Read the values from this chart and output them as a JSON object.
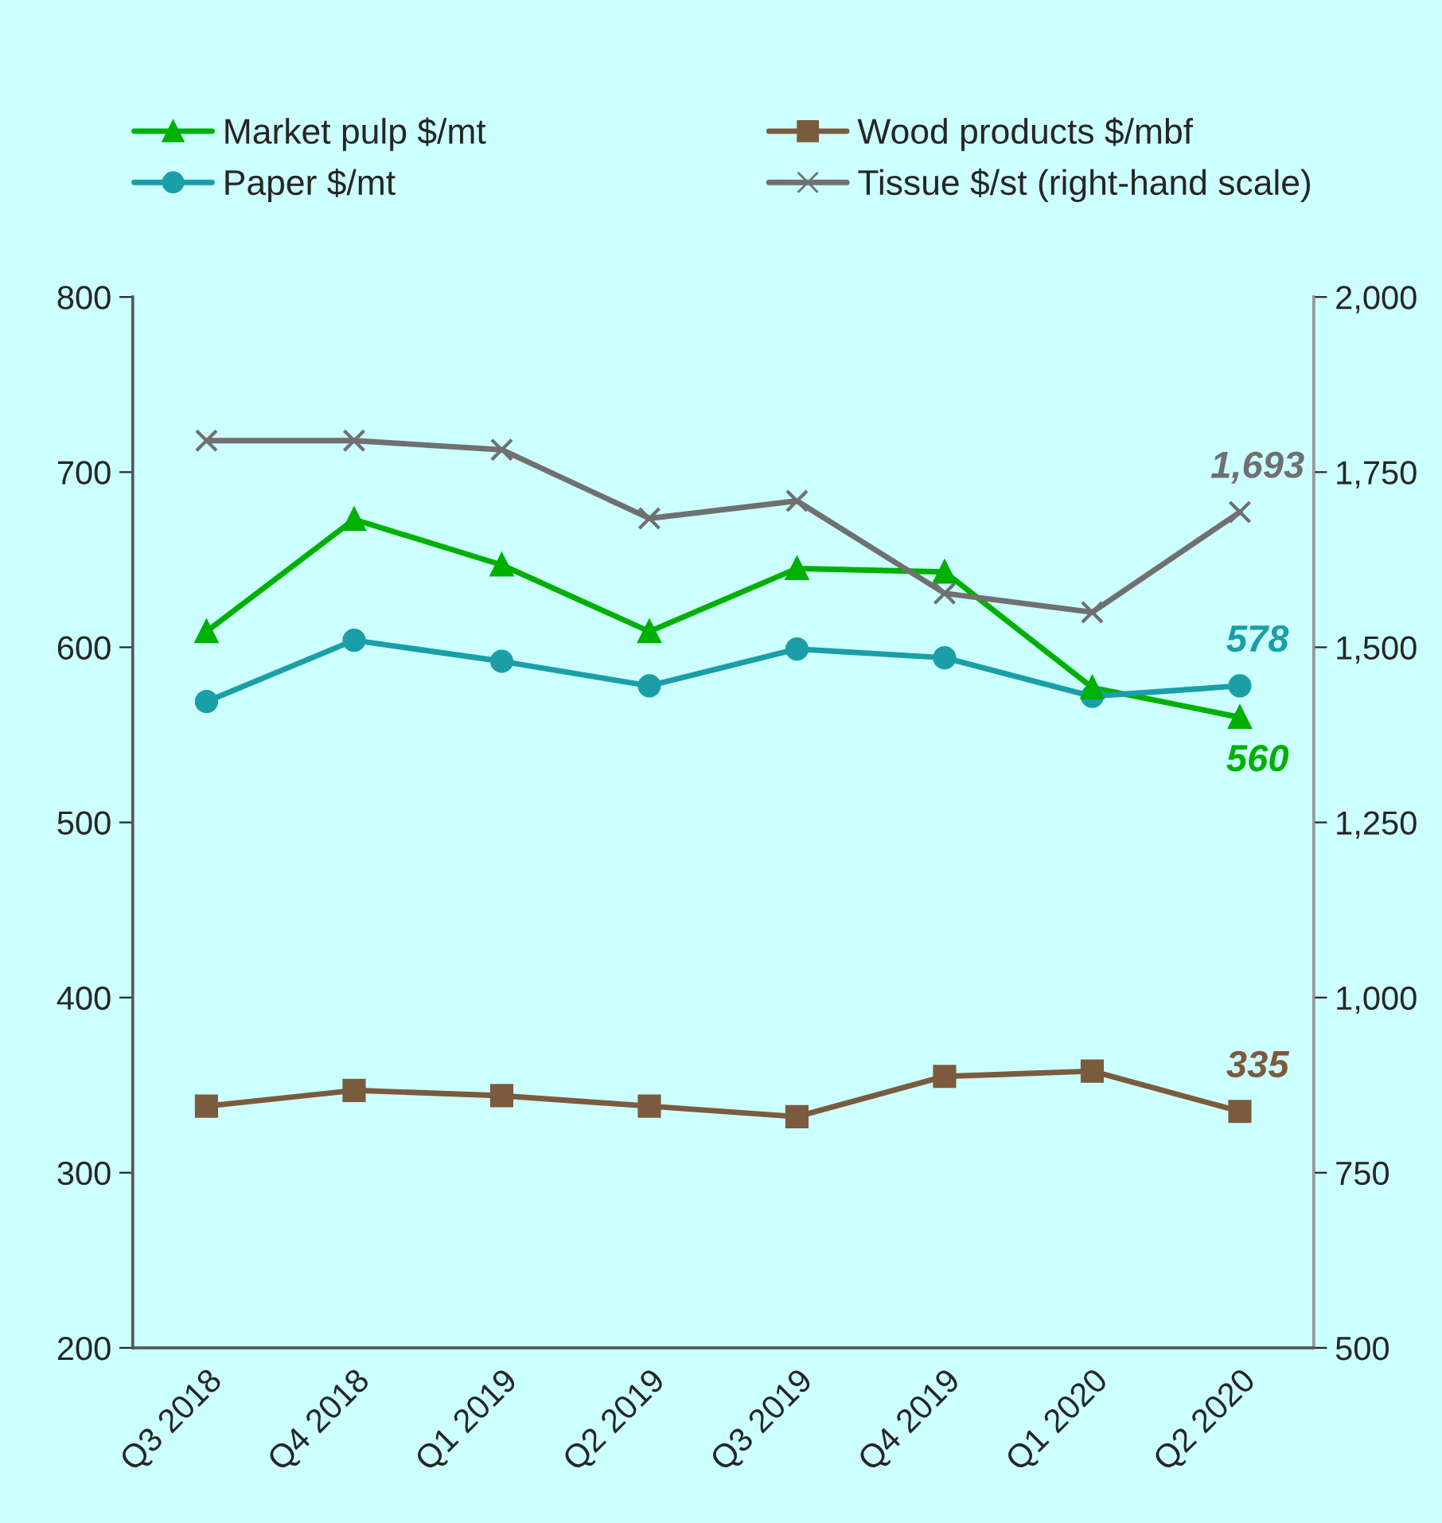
{
  "chart_data": {
    "type": "line",
    "categories": [
      "Q3 2018",
      "Q4 2018",
      "Q1 2019",
      "Q2 2019",
      "Q3 2019",
      "Q4 2019",
      "Q1 2020",
      "Q2 2020"
    ],
    "series": [
      {
        "name": "Market pulp $/mt",
        "color": "#00b000",
        "marker": "triangle",
        "values": [
          609,
          673,
          647,
          609,
          645,
          643,
          577,
          560
        ],
        "value_labels": [
          null,
          null,
          null,
          null,
          null,
          null,
          null,
          "560"
        ]
      },
      {
        "name": "Paper $/mt",
        "color": "#1a9ea8",
        "marker": "circle",
        "values": [
          569,
          604,
          592,
          578,
          599,
          594,
          572,
          578
        ],
        "value_labels": [
          null,
          null,
          null,
          null,
          null,
          null,
          null,
          "578"
        ]
      },
      {
        "name": "Wood products $/mbf",
        "color": "#7b5b3e",
        "marker": "square",
        "values": [
          338,
          347,
          344,
          338,
          332,
          355,
          358,
          335
        ],
        "value_labels": [
          null,
          null,
          null,
          null,
          null,
          null,
          null,
          "335"
        ]
      },
      {
        "name": "Tissue $/st (right-hand scale)",
        "color": "#707070",
        "marker": "cross",
        "axis": "y2",
        "values": [
          1795,
          1795,
          1782,
          1684,
          1709,
          1577,
          1550,
          1693
        ],
        "value_labels": [
          null,
          null,
          null,
          null,
          null,
          null,
          null,
          "1,693"
        ]
      }
    ],
    "ylim": [
      200,
      800
    ],
    "yticks": [
      200,
      300,
      400,
      500,
      600,
      700,
      800
    ],
    "y2lim": [
      500,
      2000
    ],
    "y2ticks": [
      {
        "value": 500,
        "label": "500"
      },
      {
        "value": 750,
        "label": "750"
      },
      {
        "value": 1000,
        "label": "1,000"
      },
      {
        "value": 1250,
        "label": "1,250"
      },
      {
        "value": 1500,
        "label": "1,500"
      },
      {
        "value": 1750,
        "label": "1,750"
      },
      {
        "value": 2000,
        "label": "2,000"
      }
    ],
    "legend": "top",
    "grid": false,
    "line_style": "solid"
  }
}
